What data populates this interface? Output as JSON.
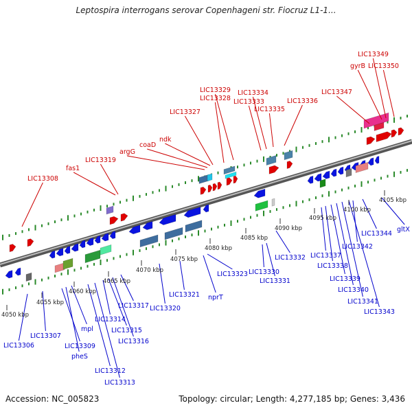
{
  "title": "Leptospira interrogans serovar Copenhageni str. Fiocruz L1-1...",
  "footer": {
    "accession": "Accession: NC_005823",
    "summary": "Topology: circular; Length: 4,277,185 bp; Genes: 3,436"
  },
  "colors": {
    "top_label": "#cc0000",
    "bottom_label": "#0000cc",
    "axis": "#7a7a7a",
    "tick": "#2a8a2a"
  },
  "ticks": [
    "4050 kbp",
    "4055 kbp",
    "4060 kbp",
    "4065 kbp",
    "4070 kbp",
    "4075 kbp",
    "4080 kbp",
    "4085 kbp",
    "4090 kbp",
    "4095 kbp",
    "4100 kbp",
    "4105 kbp"
  ],
  "top_labels": [
    "LIC13308",
    "fas1",
    "LIC13319",
    "argG",
    "coaD",
    "ndk",
    "LIC13327",
    "LIC13328",
    "LIC13329",
    "LIC13333",
    "LIC13334",
    "LIC13335",
    "LIC13336",
    "LIC13347",
    "gyrB",
    "LIC13349",
    "LIC13350"
  ],
  "bottom_labels": [
    "LIC13306",
    "LIC13307",
    "LIC13309",
    "pheS",
    "mpl",
    "LIC13312",
    "LIC13313",
    "LIC13314",
    "LIC13315",
    "LIC13316",
    "LIC13317",
    "LIC13320",
    "LIC13321",
    "nprT",
    "LIC13323",
    "LIC13330",
    "LIC13331",
    "LIC13332",
    "LIC13337",
    "LIC13338",
    "LIC13339",
    "LIC13340",
    "LIC13341",
    "LIC13342",
    "LIC13343",
    "LIC13344",
    "gltX"
  ]
}
